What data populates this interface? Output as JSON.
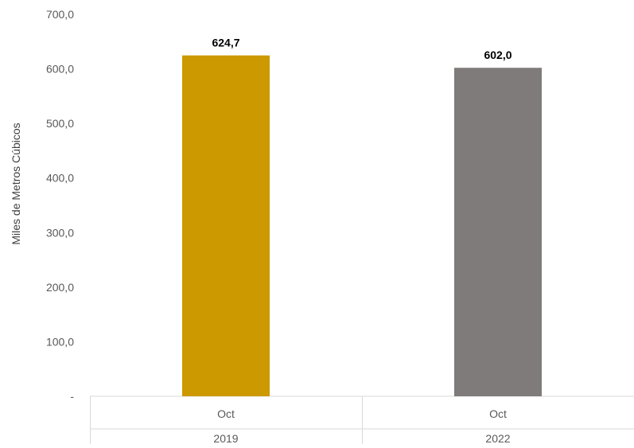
{
  "chart_data": {
    "type": "bar",
    "title": "",
    "ylabel": "Miles de Metros Cúbicos",
    "xlabel": "",
    "ylim": [
      0,
      700
    ],
    "y_ticks": [
      0,
      100,
      200,
      300,
      400,
      500,
      600,
      700
    ],
    "y_tick_labels": [
      "-",
      "100,0",
      "200,0",
      "300,0",
      "400,0",
      "500,0",
      "600,0",
      "700,0"
    ],
    "grid": false,
    "legend": "none",
    "categories": [
      {
        "month": "Oct",
        "year": "2019",
        "value": 624.7,
        "value_label": "624,7",
        "color": "#CC9900"
      },
      {
        "month": "Oct",
        "year": "2022",
        "value": 602.0,
        "value_label": "602,0",
        "color": "#7F7B7A"
      }
    ]
  }
}
